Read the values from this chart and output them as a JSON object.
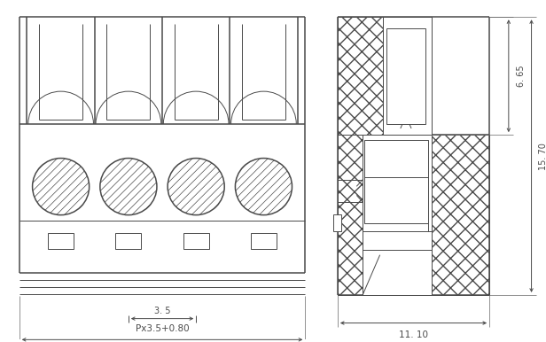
{
  "bg_color": "#ffffff",
  "line_color": "#4a4a4a",
  "dim_color": "#4a4a4a",
  "fig_width": 6.16,
  "fig_height": 3.86,
  "dpi": 100,
  "dim_35_label": "3. 5",
  "dim_px_label": "Px3.5+0.80",
  "dim_1110_label": "11. 10",
  "dim_665_label": "6. 65",
  "dim_1570_label": "15. 70",
  "n_poles": 4
}
